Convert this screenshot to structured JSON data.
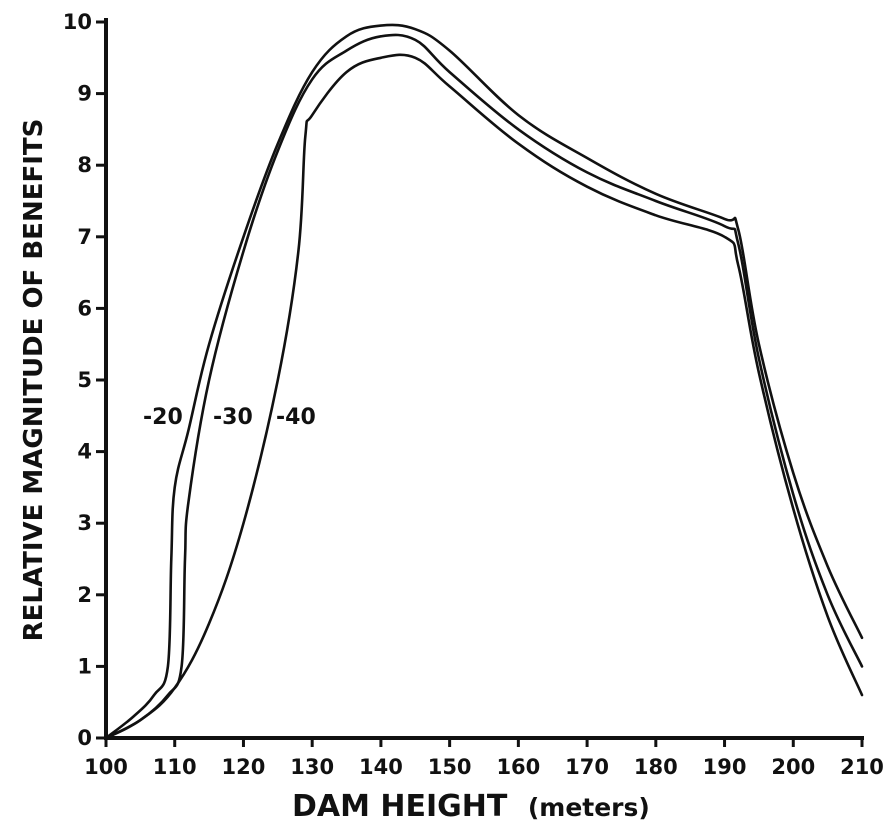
{
  "chart_data": {
    "type": "line",
    "xlabel": "DAM HEIGHT",
    "xlabel_unit": "(meters)",
    "ylabel": "RELATIVE MAGNITUDE OF BENEFITS",
    "xlim": [
      100,
      210
    ],
    "ylim": [
      0,
      10
    ],
    "x_ticks": [
      100,
      110,
      120,
      130,
      140,
      150,
      160,
      170,
      180,
      190,
      200,
      210
    ],
    "y_ticks": [
      0,
      1,
      2,
      3,
      4,
      5,
      6,
      7,
      8,
      9,
      10
    ],
    "grid": false,
    "series": [
      {
        "name": "-20",
        "x": [
          100,
          104,
          107,
          109,
          109.5,
          110,
          112,
          115,
          120,
          125,
          130,
          135,
          140,
          145,
          150,
          160,
          170,
          180,
          190,
          192,
          195,
          200,
          205,
          210
        ],
        "y": [
          0,
          0.3,
          0.6,
          1.0,
          2.5,
          3.5,
          4.3,
          5.5,
          7.0,
          8.3,
          9.3,
          9.8,
          9.95,
          9.9,
          9.6,
          8.7,
          8.1,
          7.6,
          7.25,
          7.1,
          5.5,
          3.7,
          2.4,
          1.4
        ]
      },
      {
        "name": "-30",
        "x": [
          100,
          105,
          109,
          111,
          111.5,
          112,
          115,
          120,
          125,
          130,
          135,
          140,
          145,
          150,
          160,
          170,
          180,
          190,
          192,
          195,
          200,
          205,
          210
        ],
        "y": [
          0,
          0.25,
          0.6,
          1.0,
          2.5,
          3.3,
          5.0,
          6.8,
          8.2,
          9.2,
          9.6,
          9.8,
          9.75,
          9.3,
          8.5,
          7.9,
          7.5,
          7.15,
          6.9,
          5.3,
          3.4,
          2.0,
          1.0
        ]
      },
      {
        "name": "-40",
        "x": [
          100,
          105,
          110,
          115,
          120,
          125,
          128,
          129,
          130,
          135,
          140,
          145,
          150,
          160,
          170,
          180,
          190,
          192,
          195,
          200,
          205,
          210
        ],
        "y": [
          0,
          0.25,
          0.7,
          1.6,
          3.0,
          5.0,
          6.8,
          8.4,
          8.7,
          9.3,
          9.5,
          9.5,
          9.1,
          8.3,
          7.7,
          7.3,
          7.0,
          6.6,
          5.1,
          3.2,
          1.7,
          0.6
        ]
      }
    ],
    "annotations": [
      "-20",
      "-30",
      "-40"
    ]
  }
}
